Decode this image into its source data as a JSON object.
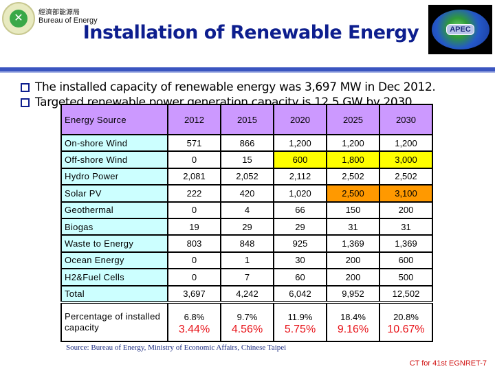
{
  "header": {
    "org_cn": "經濟部能源局",
    "org_en": "Bureau of Energy",
    "title": "Installation of Renewable Energy",
    "apec_logo": "APEC"
  },
  "bullets": [
    "The installed capacity of renewable energy was 3,697 MW in Dec 2012.",
    "Targeted renewable power generation capacity is 12.5 GW by 2030."
  ],
  "table": {
    "columns": [
      "Energy Source",
      "2012",
      "2015",
      "2020",
      "2025",
      "2030"
    ],
    "rows": [
      {
        "source": "On-shore Wind",
        "values": [
          "571",
          "866",
          "1,200",
          "1,200",
          "1,200"
        ]
      },
      {
        "source": "Off-shore Wind",
        "values": [
          "0",
          "15",
          "600",
          "1,800",
          "3,000"
        ]
      },
      {
        "source": "Hydro Power",
        "values": [
          "2,081",
          "2,052",
          "2,112",
          "2,502",
          "2,502"
        ]
      },
      {
        "source": "Solar PV",
        "values": [
          "222",
          "420",
          "1,020",
          "2,500",
          "3,100"
        ]
      },
      {
        "source": "Geothermal",
        "values": [
          "0",
          "4",
          "66",
          "150",
          "200"
        ]
      },
      {
        "source": "Biogas",
        "values": [
          "19",
          "29",
          "29",
          "31",
          "31"
        ]
      },
      {
        "source": "Waste to Energy",
        "values": [
          "803",
          "848",
          "925",
          "1,369",
          "1,369"
        ]
      },
      {
        "source": "Ocean Energy",
        "values": [
          "0",
          "1",
          "30",
          "200",
          "600"
        ]
      },
      {
        "source": "H2&Fuel Cells",
        "values": [
          "0",
          "7",
          "60",
          "200",
          "500"
        ]
      },
      {
        "source": "Total",
        "values": [
          "3,697",
          "4,242",
          "6,042",
          "9,952",
          "12,502"
        ]
      }
    ],
    "percentage": {
      "label": "Percentage of installed capacity",
      "values": [
        "6.8%",
        "9.7%",
        "11.9%",
        "18.4%",
        "20.8%"
      ],
      "red_values": [
        "3.44%",
        "4.56%",
        "5.75%",
        "9.16%",
        "10.67%"
      ]
    },
    "colors": {
      "header": "#cc99ff",
      "source_col": "#ccffff",
      "highlight_yellow": "#ffff00",
      "highlight_orange": "#ff9900",
      "red_text": "#e8141a"
    }
  },
  "source": "Source: Bureau of Energy, Ministry of Economic Affairs, Chinese Taipei",
  "footer": "CT for 41st EGNRET-7"
}
